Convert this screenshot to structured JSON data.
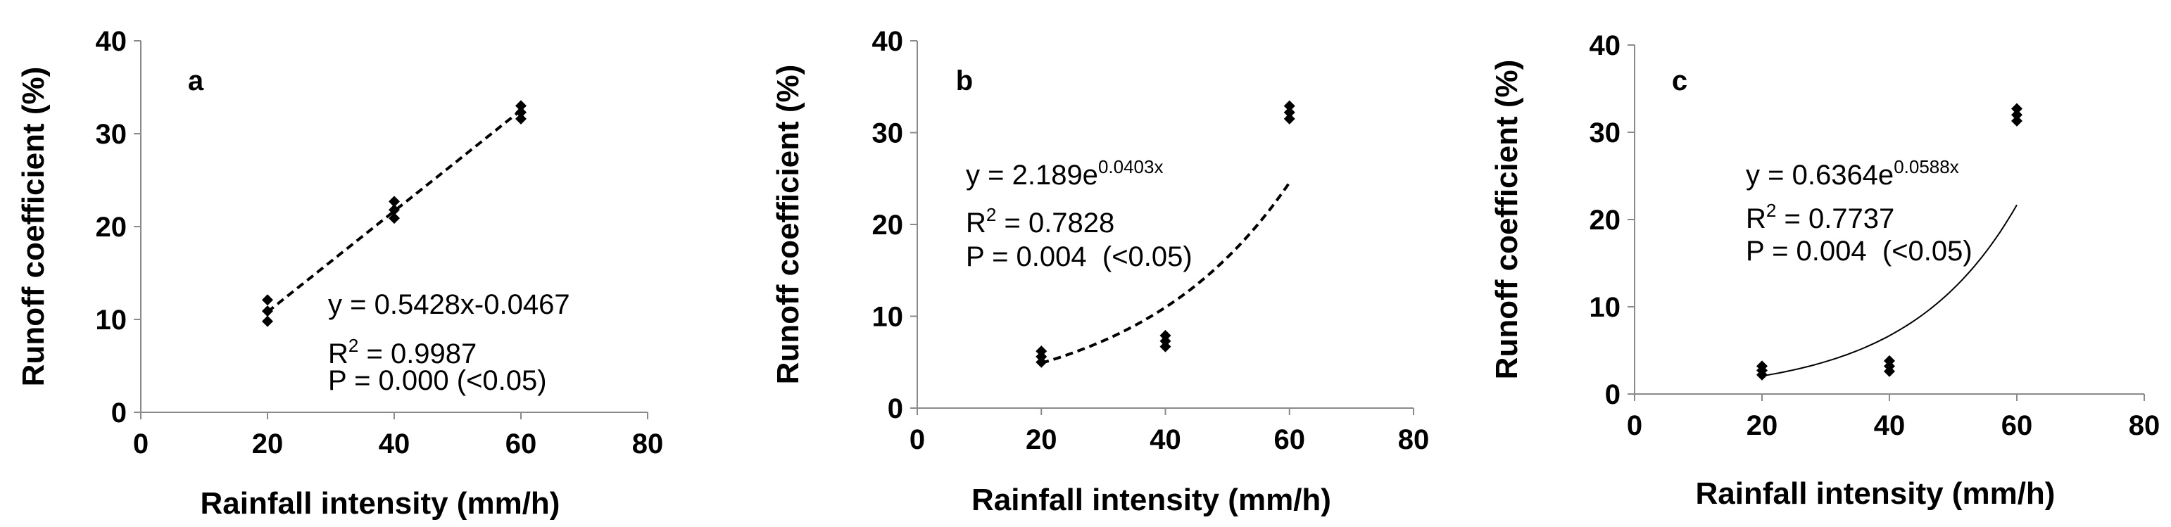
{
  "chart_data": [
    {
      "type": "scatter",
      "panel": "a",
      "xlabel": "Rainfall intensity (mm/h)",
      "ylabel": "Runoff coefficient (%)",
      "xlim": [
        0,
        80
      ],
      "ylim": [
        0,
        40
      ],
      "xticks": [
        0,
        20,
        40,
        60,
        80
      ],
      "yticks": [
        0,
        10,
        20,
        30,
        40
      ],
      "grid": false,
      "points": [
        {
          "x": 20,
          "y": 9.8
        },
        {
          "x": 20,
          "y": 10.9
        },
        {
          "x": 20,
          "y": 12.1
        },
        {
          "x": 40,
          "y": 20.9
        },
        {
          "x": 40,
          "y": 21.8
        },
        {
          "x": 40,
          "y": 22.7
        },
        {
          "x": 60,
          "y": 31.6
        },
        {
          "x": 60,
          "y": 32.3
        },
        {
          "x": 60,
          "y": 33.0
        }
      ],
      "fit": {
        "kind": "linear",
        "a": 0.5428,
        "b": -0.0467,
        "x_range": [
          20,
          60
        ],
        "style": "dashed"
      },
      "annotation": {
        "line1_pre": "y = 0.5428x-0.0467",
        "line1_sup": "",
        "line2_pre": "R",
        "line2_sup": "2",
        "line2_post": " = 0.9987",
        "line3": "P = 0.000 (<0.05)"
      }
    },
    {
      "type": "scatter",
      "panel": "b",
      "xlabel": "Rainfall intensity (mm/h)",
      "ylabel": "Runoff coefficient (%)",
      "xlim": [
        0,
        80
      ],
      "ylim": [
        0,
        40
      ],
      "xticks": [
        0,
        20,
        40,
        60,
        80
      ],
      "yticks": [
        0,
        10,
        20,
        30,
        40
      ],
      "grid": false,
      "points": [
        {
          "x": 20,
          "y": 5.0
        },
        {
          "x": 20,
          "y": 5.6
        },
        {
          "x": 20,
          "y": 6.2
        },
        {
          "x": 40,
          "y": 6.7
        },
        {
          "x": 40,
          "y": 7.3
        },
        {
          "x": 40,
          "y": 7.9
        },
        {
          "x": 60,
          "y": 31.5
        },
        {
          "x": 60,
          "y": 32.2
        },
        {
          "x": 60,
          "y": 32.9
        }
      ],
      "fit": {
        "kind": "exponential",
        "a": 2.189,
        "b": 0.0403,
        "x_range": [
          20,
          60
        ],
        "style": "dashed"
      },
      "annotation": {
        "line1_pre": "y = 2.189e",
        "line1_sup": "0.0403x",
        "line2_pre": "R",
        "line2_sup": "2",
        "line2_post": " = 0.7828",
        "line3": "P = 0.004  (<0.05)"
      }
    },
    {
      "type": "scatter",
      "panel": "c",
      "xlabel": "Rainfall intensity (mm/h)",
      "ylabel": "Runoff coefficient (%)",
      "xlim": [
        0,
        80
      ],
      "ylim": [
        0,
        40
      ],
      "xticks": [
        0,
        20,
        40,
        60,
        80
      ],
      "yticks": [
        0,
        10,
        20,
        30,
        40
      ],
      "grid": false,
      "points": [
        {
          "x": 20,
          "y": 2.2
        },
        {
          "x": 20,
          "y": 2.7
        },
        {
          "x": 20,
          "y": 3.2
        },
        {
          "x": 40,
          "y": 2.6
        },
        {
          "x": 40,
          "y": 3.2
        },
        {
          "x": 40,
          "y": 3.8
        },
        {
          "x": 60,
          "y": 31.3
        },
        {
          "x": 60,
          "y": 32.0
        },
        {
          "x": 60,
          "y": 32.7
        }
      ],
      "fit": {
        "kind": "exponential",
        "a": 0.6364,
        "b": 0.0588,
        "x_range": [
          20,
          60
        ],
        "style": "solid"
      },
      "annotation": {
        "line1_pre": "y = 0.6364e",
        "line1_sup": "0.0588x",
        "line2_pre": "R",
        "line2_sup": "2",
        "line2_post": " = 0.7737",
        "line3": "P = 0.004  (<0.05)"
      }
    }
  ]
}
